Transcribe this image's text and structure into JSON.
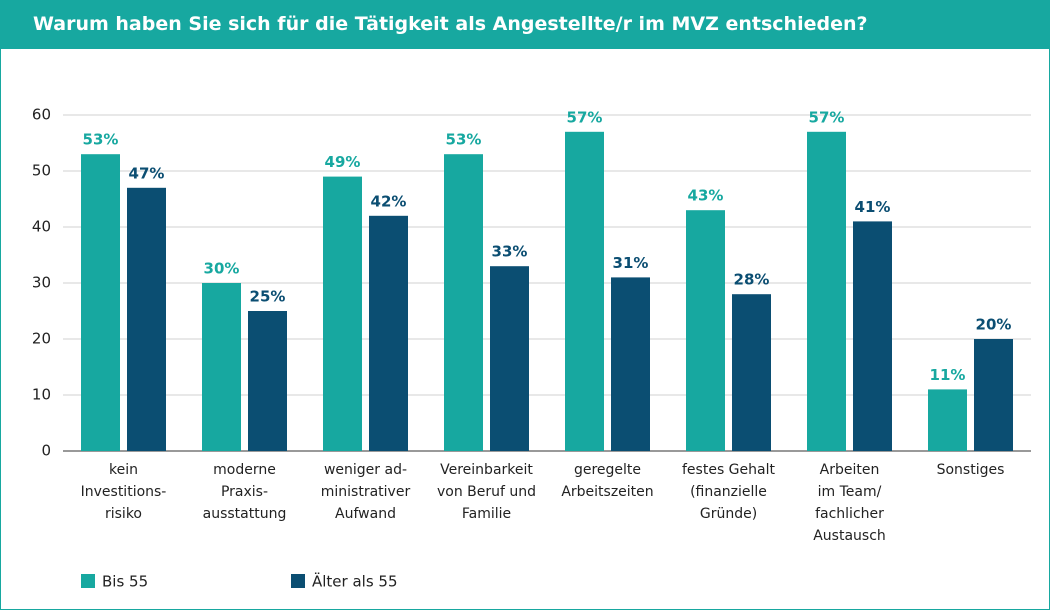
{
  "chart_data": {
    "type": "bar",
    "title": "Warum haben Sie sich für die Tätigkeit als Angestellte/r im MVZ entschieden?",
    "categories": [
      "kein\nInvestitions-\nrisiko",
      "moderne\nPraxis-\nausstattung",
      "weniger ad-\nministrativer\nAufwand",
      "Vereinbarkeit\nvon Beruf und\nFamilie",
      "geregelte\nArbeitszeiten",
      "festes Gehalt\n(finanzielle\nGründe)",
      "Arbeiten\nim Team/\nfachlicher\nAustausch",
      "Sonstiges"
    ],
    "series": [
      {
        "name": "Bis 55",
        "color": "#17a8a0",
        "values": [
          53,
          30,
          49,
          53,
          57,
          43,
          57,
          11
        ],
        "value_labels": [
          "53%",
          "30%",
          "49%",
          "53%",
          "57%",
          "43%",
          "57%",
          "11%"
        ]
      },
      {
        "name": "Älter als 55",
        "color": "#0b4e72",
        "values": [
          47,
          25,
          42,
          33,
          31,
          28,
          41,
          20
        ],
        "value_labels": [
          "47%",
          "25%",
          "42%",
          "33%",
          "31%",
          "28%",
          "41%",
          "20%"
        ]
      }
    ],
    "ylim": [
      0,
      60
    ],
    "yticks": [
      0,
      10,
      20,
      30,
      40,
      50,
      60
    ],
    "grid": true
  }
}
